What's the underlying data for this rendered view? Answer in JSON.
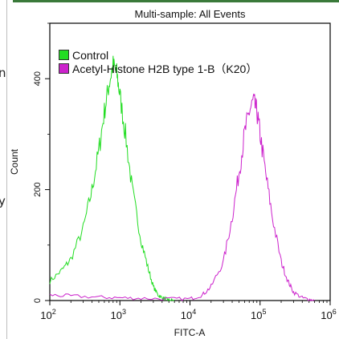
{
  "page_fragments": {
    "left_top": "n",
    "left_mid": "y"
  },
  "chart_data": {
    "type": "line",
    "title": "Multi-sample: All Events",
    "xlabel": "FITC-A",
    "ylabel": "Count",
    "x_scale": "log",
    "xlim": [
      100,
      1000000
    ],
    "ylim": [
      0,
      500
    ],
    "x_ticks": [
      {
        "value": 100,
        "base": "10",
        "exp": "2"
      },
      {
        "value": 1000,
        "base": "10",
        "exp": "3"
      },
      {
        "value": 10000,
        "base": "10",
        "exp": "4"
      },
      {
        "value": 100000,
        "base": "10",
        "exp": "5"
      },
      {
        "value": 1000000,
        "base": "10",
        "exp": "6"
      }
    ],
    "y_ticks": [
      {
        "value": 0,
        "label": "0"
      },
      {
        "value": 200,
        "label": "200"
      },
      {
        "value": 400,
        "label": "400"
      }
    ],
    "grid": false,
    "legend": "top-left",
    "series": [
      {
        "name": "Control",
        "color": "#22dd22",
        "x": [
          100,
          150,
          200,
          300,
          400,
          500,
          600,
          700,
          800,
          900,
          1000,
          1200,
          1500,
          2000,
          2500,
          3000,
          3500,
          4000,
          4500,
          5000,
          6000
        ],
        "y": [
          35,
          55,
          75,
          130,
          200,
          270,
          340,
          390,
          425,
          410,
          370,
          300,
          200,
          110,
          60,
          25,
          10,
          5,
          3,
          1,
          0
        ]
      },
      {
        "name": "Acetyl-Histone H2B type 1-B（K20）",
        "color": "#cc22cc",
        "x": [
          100,
          200,
          500,
          1000,
          2000,
          5000,
          10000,
          15000,
          20000,
          30000,
          40000,
          50000,
          60000,
          70000,
          80000,
          90000,
          100000,
          120000,
          150000,
          200000,
          250000,
          300000,
          400000,
          500000,
          600000
        ],
        "y": [
          10,
          8,
          6,
          5,
          4,
          3,
          3,
          10,
          25,
          70,
          150,
          230,
          300,
          340,
          360,
          340,
          300,
          230,
          150,
          70,
          35,
          15,
          5,
          2,
          0
        ]
      }
    ]
  },
  "colors": {
    "frame": "#000000",
    "top_strip": "#3a7a3a"
  }
}
